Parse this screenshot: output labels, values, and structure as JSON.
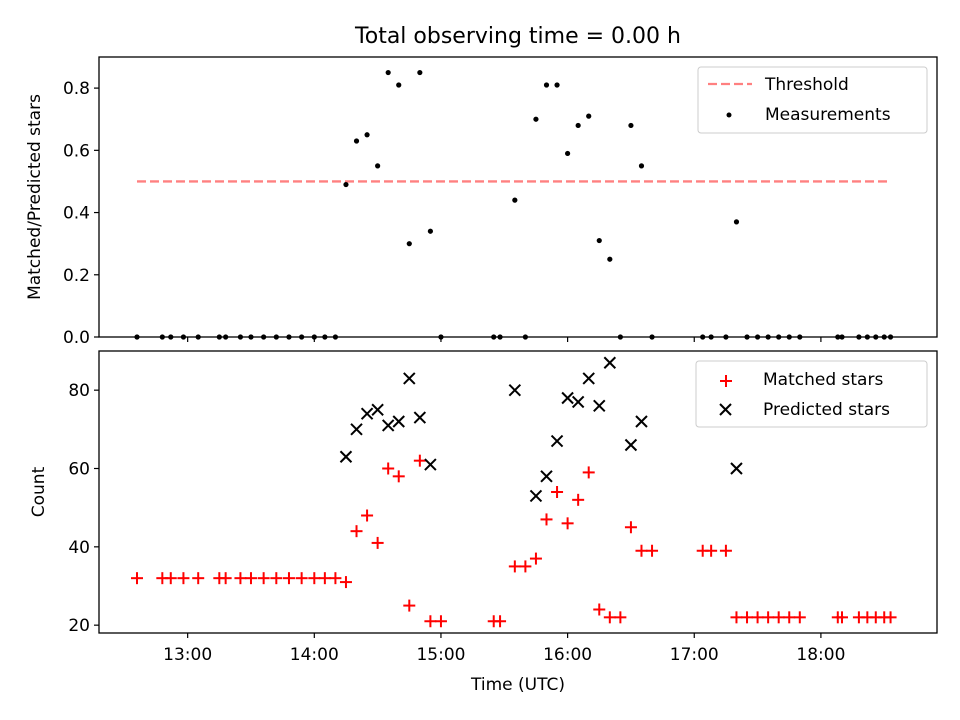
{
  "figure": {
    "title": "Total observing time = 0.00 h",
    "xlabel": "Time (UTC)"
  },
  "chart_data": [
    {
      "type": "scatter",
      "title": "Total observing time = 0.00 h",
      "ylabel": "Matched/Predicted stars",
      "xlim": [
        "12:18",
        "18:55"
      ],
      "ylim": [
        0,
        0.9
      ],
      "yticks": [
        "0.0",
        "0.2",
        "0.4",
        "0.6",
        "0.8"
      ],
      "grid": false,
      "legend": "top-right",
      "threshold": {
        "name": "Threshold",
        "color": "#ff8080",
        "style": "dashed",
        "y": 0.5,
        "x": [
          "12:36",
          "18:32"
        ]
      },
      "series": [
        {
          "name": "Measurements",
          "color": "#000000",
          "marker": "dot",
          "points": [
            [
              "12:36",
              0
            ],
            [
              "12:48",
              0
            ],
            [
              "12:52",
              0
            ],
            [
              "12:58",
              0
            ],
            [
              "13:05",
              0
            ],
            [
              "13:15",
              0
            ],
            [
              "13:18",
              0
            ],
            [
              "13:25",
              0
            ],
            [
              "13:30",
              0
            ],
            [
              "13:36",
              0
            ],
            [
              "13:42",
              0
            ],
            [
              "13:48",
              0
            ],
            [
              "13:54",
              0
            ],
            [
              "14:00",
              0
            ],
            [
              "14:05",
              0
            ],
            [
              "14:10",
              0
            ],
            [
              "14:15",
              0.49
            ],
            [
              "14:20",
              0.63
            ],
            [
              "14:25",
              0.65
            ],
            [
              "14:30",
              0.55
            ],
            [
              "14:35",
              0.85
            ],
            [
              "14:40",
              0.81
            ],
            [
              "14:45",
              0.3
            ],
            [
              "14:50",
              0.85
            ],
            [
              "14:55",
              0.34
            ],
            [
              "15:00",
              0
            ],
            [
              "15:25",
              0
            ],
            [
              "15:28",
              0
            ],
            [
              "15:35",
              0.44
            ],
            [
              "15:40",
              0
            ],
            [
              "15:45",
              0.7
            ],
            [
              "15:50",
              0.81
            ],
            [
              "15:55",
              0.81
            ],
            [
              "16:00",
              0.59
            ],
            [
              "16:05",
              0.68
            ],
            [
              "16:10",
              0.71
            ],
            [
              "16:15",
              0.31
            ],
            [
              "16:20",
              0.25
            ],
            [
              "16:25",
              0
            ],
            [
              "16:30",
              0.68
            ],
            [
              "16:35",
              0.55
            ],
            [
              "16:40",
              0
            ],
            [
              "17:04",
              0
            ],
            [
              "17:08",
              0
            ],
            [
              "17:15",
              0
            ],
            [
              "17:20",
              0.37
            ],
            [
              "17:25",
              0
            ],
            [
              "17:30",
              0
            ],
            [
              "17:35",
              0
            ],
            [
              "17:40",
              0
            ],
            [
              "17:45",
              0
            ],
            [
              "17:50",
              0
            ],
            [
              "18:08",
              0
            ],
            [
              "18:10",
              0
            ],
            [
              "18:18",
              0
            ],
            [
              "18:22",
              0
            ],
            [
              "18:26",
              0
            ],
            [
              "18:30",
              0
            ],
            [
              "18:33",
              0
            ]
          ]
        }
      ]
    },
    {
      "type": "scatter",
      "xlabel": "Time (UTC)",
      "ylabel": "Count",
      "xlim": [
        "12:18",
        "18:55"
      ],
      "ylim": [
        18,
        90
      ],
      "yticks": [
        "20",
        "40",
        "60",
        "80"
      ],
      "xticks": [
        "13:00",
        "14:00",
        "15:00",
        "16:00",
        "17:00",
        "18:00"
      ],
      "grid": false,
      "legend": "top-right",
      "series": [
        {
          "name": "Matched stars",
          "color": "#ff0000",
          "marker": "plus",
          "points": [
            [
              "12:36",
              32
            ],
            [
              "12:48",
              32
            ],
            [
              "12:52",
              32
            ],
            [
              "12:58",
              32
            ],
            [
              "13:05",
              32
            ],
            [
              "13:15",
              32
            ],
            [
              "13:18",
              32
            ],
            [
              "13:25",
              32
            ],
            [
              "13:30",
              32
            ],
            [
              "13:36",
              32
            ],
            [
              "13:42",
              32
            ],
            [
              "13:48",
              32
            ],
            [
              "13:54",
              32
            ],
            [
              "14:00",
              32
            ],
            [
              "14:05",
              32
            ],
            [
              "14:10",
              32
            ],
            [
              "14:15",
              31
            ],
            [
              "14:20",
              44
            ],
            [
              "14:25",
              48
            ],
            [
              "14:30",
              41
            ],
            [
              "14:35",
              60
            ],
            [
              "14:40",
              58
            ],
            [
              "14:45",
              25
            ],
            [
              "14:50",
              62
            ],
            [
              "14:55",
              21
            ],
            [
              "15:00",
              21
            ],
            [
              "15:25",
              21
            ],
            [
              "15:28",
              21
            ],
            [
              "15:35",
              35
            ],
            [
              "15:40",
              35
            ],
            [
              "15:45",
              37
            ],
            [
              "15:50",
              47
            ],
            [
              "15:55",
              54
            ],
            [
              "16:00",
              46
            ],
            [
              "16:05",
              52
            ],
            [
              "16:10",
              59
            ],
            [
              "16:15",
              24
            ],
            [
              "16:20",
              22
            ],
            [
              "16:25",
              22
            ],
            [
              "16:30",
              45
            ],
            [
              "16:35",
              39
            ],
            [
              "16:40",
              39
            ],
            [
              "17:04",
              39
            ],
            [
              "17:08",
              39
            ],
            [
              "17:15",
              39
            ],
            [
              "17:20",
              22
            ],
            [
              "17:25",
              22
            ],
            [
              "17:30",
              22
            ],
            [
              "17:35",
              22
            ],
            [
              "17:40",
              22
            ],
            [
              "17:45",
              22
            ],
            [
              "17:50",
              22
            ],
            [
              "18:08",
              22
            ],
            [
              "18:10",
              22
            ],
            [
              "18:18",
              22
            ],
            [
              "18:22",
              22
            ],
            [
              "18:26",
              22
            ],
            [
              "18:30",
              22
            ],
            [
              "18:33",
              22
            ]
          ]
        },
        {
          "name": "Predicted stars",
          "color": "#000000",
          "marker": "x",
          "points": [
            [
              "14:15",
              63
            ],
            [
              "14:20",
              70
            ],
            [
              "14:25",
              74
            ],
            [
              "14:30",
              75
            ],
            [
              "14:35",
              71
            ],
            [
              "14:40",
              72
            ],
            [
              "14:45",
              83
            ],
            [
              "14:50",
              73
            ],
            [
              "14:55",
              61
            ],
            [
              "15:35",
              80
            ],
            [
              "15:45",
              53
            ],
            [
              "15:50",
              58
            ],
            [
              "15:55",
              67
            ],
            [
              "16:00",
              78
            ],
            [
              "16:05",
              77
            ],
            [
              "16:10",
              83
            ],
            [
              "16:15",
              76
            ],
            [
              "16:20",
              87
            ],
            [
              "16:30",
              66
            ],
            [
              "16:35",
              72
            ],
            [
              "17:20",
              60
            ]
          ]
        }
      ]
    }
  ]
}
